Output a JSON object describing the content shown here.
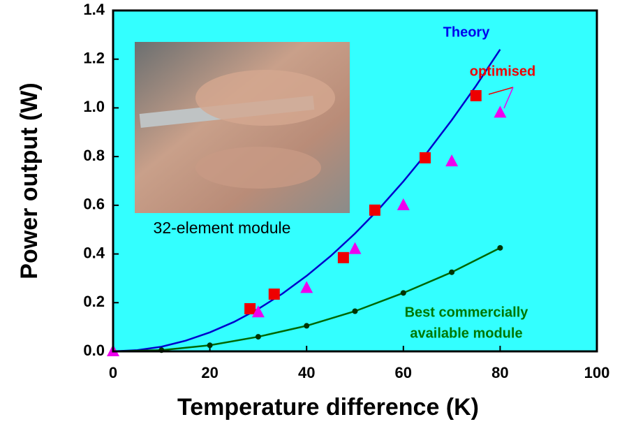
{
  "chart_data": {
    "type": "scatter",
    "x_label": "Temperature difference (K)",
    "y_label": "Power output (W)",
    "xlim": [
      0,
      100
    ],
    "xticks": [
      0,
      20,
      40,
      60,
      80,
      100
    ],
    "ylim": [
      0,
      1.4
    ],
    "yticks": [
      {
        "value": 0,
        "label": "0.0"
      },
      0.2,
      0.4,
      0.6,
      0.8,
      {
        "value": 1,
        "label": "1.0"
      },
      1.2,
      1.4
    ],
    "background": "#33ffff",
    "annotations": [
      {
        "text": "Theory",
        "color": "#0000ee"
      },
      {
        "text": "optimised",
        "color": "#ee0000"
      },
      {
        "text": "Best commercially",
        "color": "#007700"
      },
      {
        "text": "available module",
        "color": "#007700"
      },
      {
        "text": "32-element module",
        "color": "#000000"
      }
    ],
    "series": [
      {
        "color": "#0000cc",
        "marker": "none",
        "x": [
          0,
          5,
          10,
          15,
          20,
          25,
          30,
          35,
          40,
          45,
          50,
          55,
          60,
          65,
          70,
          75,
          80
        ],
        "values": [
          0.0,
          0.005,
          0.019,
          0.044,
          0.078,
          0.121,
          0.174,
          0.237,
          0.31,
          0.392,
          0.484,
          0.586,
          0.698,
          0.819,
          0.95,
          1.09,
          1.24
        ]
      },
      {
        "color": "#006600",
        "marker": "dot",
        "x": [
          0,
          10,
          20,
          30,
          40,
          50,
          60,
          70,
          80
        ],
        "values": [
          0,
          0.005,
          0.025,
          0.06,
          0.105,
          0.165,
          0.24,
          0.325,
          0.425
        ]
      },
      {
        "color": "#ee0000",
        "marker": "square",
        "x": [
          28.3,
          33.3,
          47.6,
          54.1,
          64.5,
          75
        ],
        "values": [
          0.175,
          0.235,
          0.385,
          0.58,
          0.795,
          1.05
        ]
      },
      {
        "color": "#ee00ee",
        "marker": "triangle",
        "x": [
          0,
          30,
          40,
          50,
          60,
          70,
          80
        ],
        "values": [
          0,
          0.16,
          0.26,
          0.42,
          0.6,
          0.78,
          0.98
        ]
      }
    ]
  }
}
